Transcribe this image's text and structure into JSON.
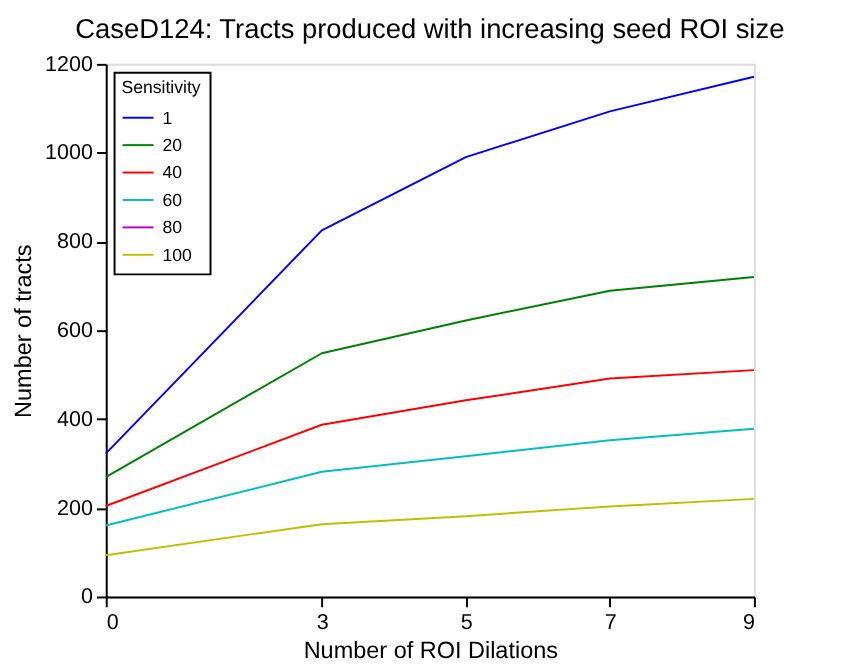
{
  "chart_data": {
    "type": "line",
    "title": "CaseD124: Tracts produced with increasing seed ROI size",
    "xlabel": "Number of ROI Dilations",
    "ylabel": "Number of tracts",
    "legend_title": "Sensitivity",
    "x": [
      0,
      3,
      5,
      7,
      9
    ],
    "series": [
      {
        "name": "1",
        "color": "#0000ff",
        "values": [
          322,
          825,
          990,
          1093,
          1171
        ]
      },
      {
        "name": "20",
        "color": "#008000",
        "values": [
          269,
          548,
          622,
          689,
          720
        ]
      },
      {
        "name": "40",
        "color": "#ff0000",
        "values": [
          204,
          387,
          442,
          491,
          510
        ]
      },
      {
        "name": "60",
        "color": "#00bfbf",
        "values": [
          160,
          281,
          316,
          352,
          378
        ]
      },
      {
        "name": "80",
        "color": "#bf00bf",
        "values": [
          null,
          null,
          null,
          null,
          null
        ]
      },
      {
        "name": "100",
        "color": "#bfbf00",
        "values": [
          93,
          163,
          181,
          203,
          220
        ]
      }
    ],
    "xlim": [
      0,
      9
    ],
    "xticks": [
      0,
      3,
      5,
      7,
      9
    ],
    "ylim": [
      0,
      1200
    ],
    "yticks": [
      0,
      200,
      400,
      600,
      800,
      1000,
      1200
    ],
    "grid": false,
    "legend": "top left",
    "marker": "none",
    "line_style": "solid"
  }
}
